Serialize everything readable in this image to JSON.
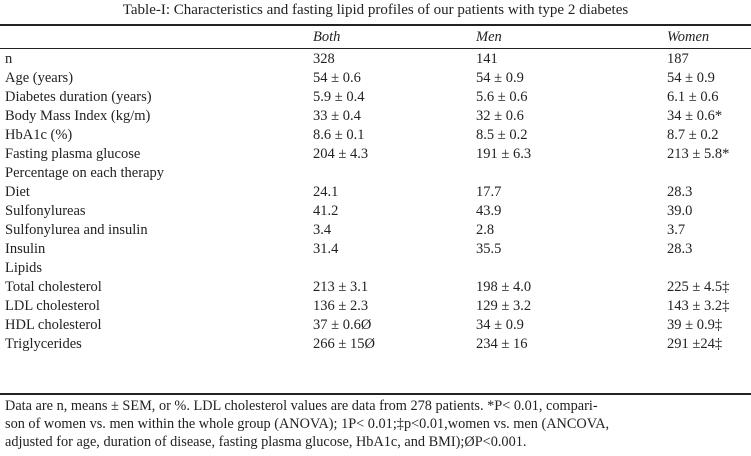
{
  "title": "Table-I: Characteristics and fasting lipid profiles of our patients with type 2 diabetes",
  "columns": [
    "Both",
    "Men",
    "Women"
  ],
  "rows": [
    {
      "label": "n",
      "both": "328",
      "men": "141",
      "women": "187"
    },
    {
      "label": "Age (years)",
      "both": "54 ± 0.6",
      "men": "54 ± 0.9",
      "women": "54 ± 0.9"
    },
    {
      "label": "Diabetes duration (years)",
      "both": "5.9 ± 0.4",
      "men": "5.6 ± 0.6",
      "women": "6.1 ± 0.6"
    },
    {
      "label": "Body Mass Index (kg/m)",
      "both": "33 ± 0.4",
      "men": "32  ± 0.6",
      "women": "34 ± 0.6*"
    },
    {
      "label": "HbA1c (%)",
      "both": "8.6 ± 0.1",
      "men": "8.5 ± 0.2",
      "women": "8.7 ± 0.2"
    },
    {
      "label": "Fasting plasma glucose",
      "both": "204 ± 4.3",
      "men": "191 ± 6.3",
      "women": "213 ± 5.8*"
    },
    {
      "label": "Percentage on each therapy",
      "both": "",
      "men": "",
      "women": ""
    },
    {
      "label": "Diet",
      "both": "24.1",
      "men": "17.7",
      "women": "28.3"
    },
    {
      "label": "Sulfonylureas",
      "both": "41.2",
      "men": "43.9",
      "women": "39.0"
    },
    {
      "label": "Sulfonylurea and insulin",
      "both": "3.4",
      "men": "2.8",
      "women": "3.7"
    },
    {
      "label": "Insulin",
      "both": "31.4",
      "men": "35.5",
      "women": "28.3"
    },
    {
      "label": "Lipids",
      "both": "",
      "men": "",
      "women": ""
    },
    {
      "label": "Total cholesterol",
      "both": "213 ± 3.1",
      "men": "198 ± 4.0",
      "women": "225 ± 4.5‡"
    },
    {
      "label": "LDL cholesterol",
      "both": "136 ± 2.3",
      "men": "129 ± 3.2",
      "women": "143 ± 3.2‡"
    },
    {
      "label": "HDL cholesterol",
      "both": "37 ± 0.6Ø",
      "men": "34 ± 0.9",
      "women": "39 ± 0.9‡"
    },
    {
      "label": "Triglycerides",
      "both": "266 ± 15Ø",
      "men": "234 ± 16",
      "women": "291 ±24‡"
    }
  ],
  "footnote": [
    "Data are n, means ± SEM, or %. LDL cholesterol values are data from 278 patients. *P< 0.01, compari-",
    "son of women vs. men within the whole group (ANOVA); 1P< 0.01;‡p<0.01,women vs. men (ANCOVA,",
    "adjusted for age, duration of disease, fasting plasma glucose, HbA1c, and BMI);ØP<0.001."
  ]
}
